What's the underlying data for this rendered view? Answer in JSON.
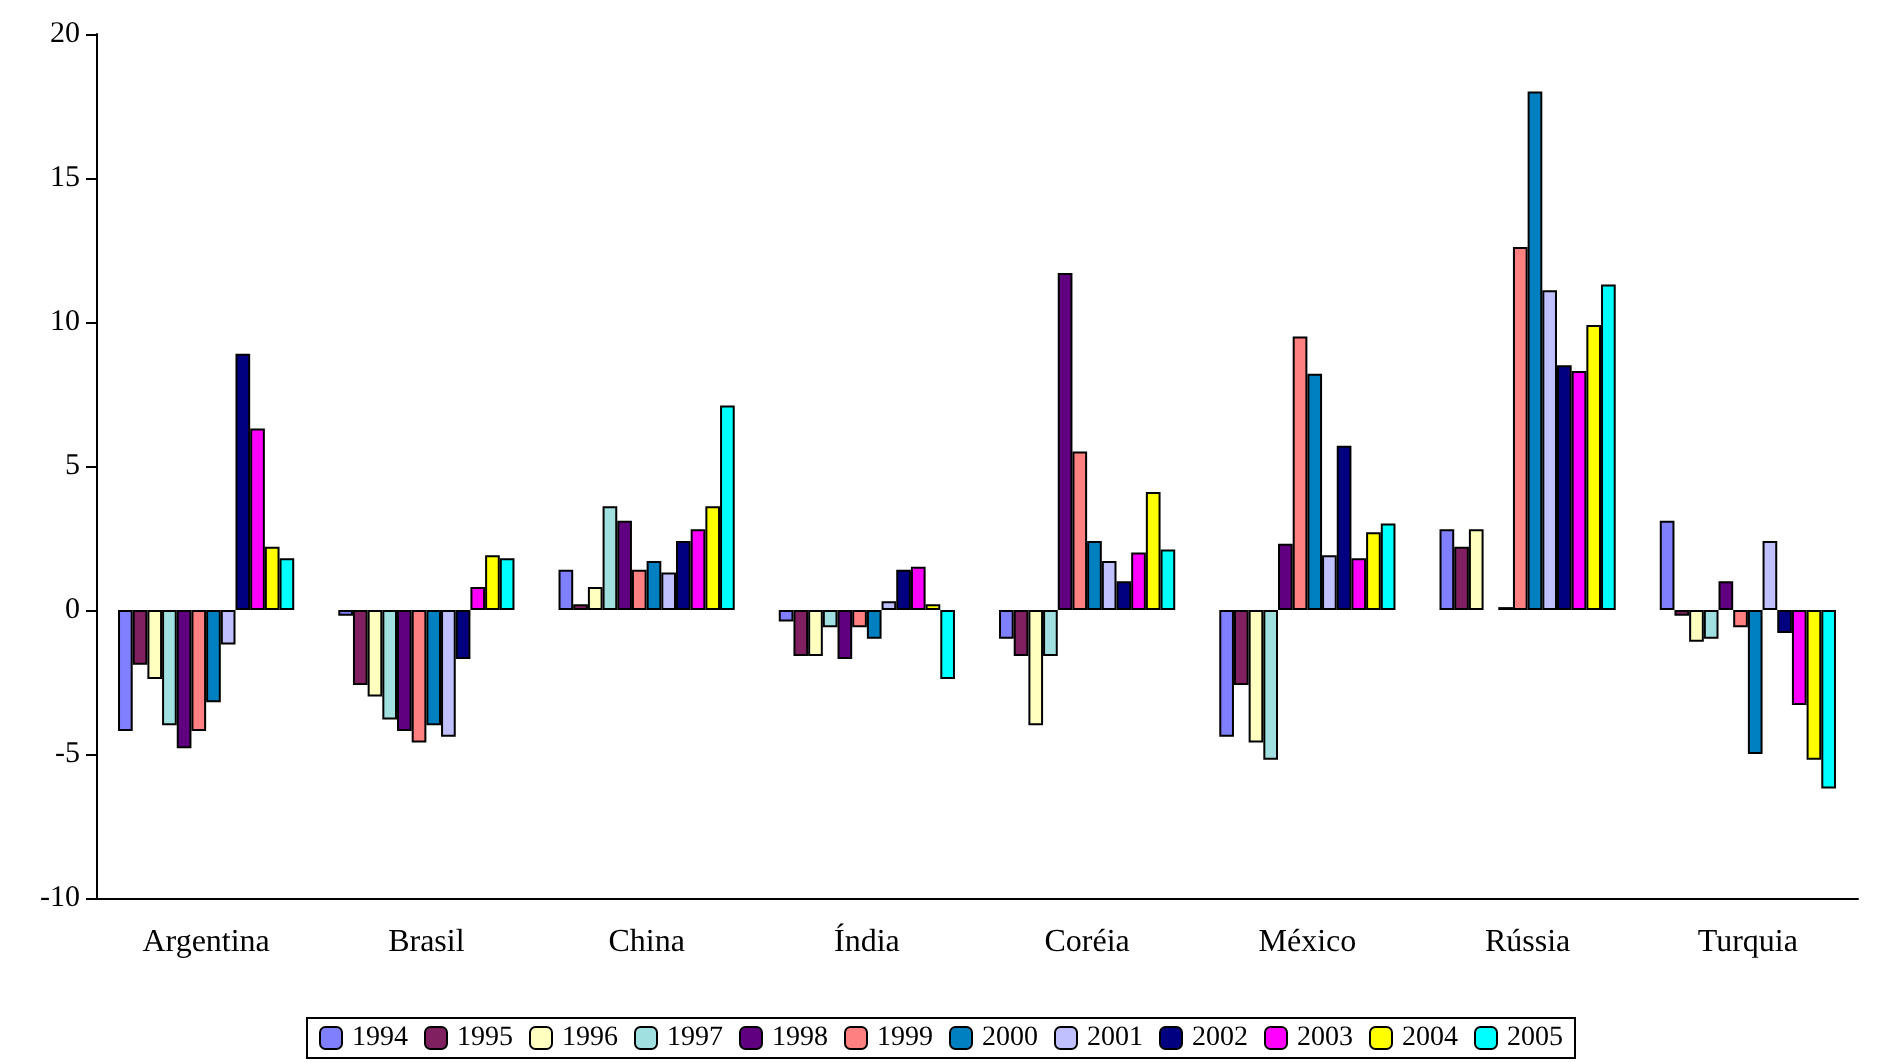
{
  "chart_data": {
    "type": "bar",
    "categories": [
      "Argentina",
      "Brasil",
      "China",
      "Índia",
      "Coréia",
      "México",
      "Rússia",
      "Turquia"
    ],
    "series": [
      {
        "name": "1994",
        "color": "#8080ff",
        "values": [
          -4.2,
          -0.2,
          1.4,
          -0.4,
          -1.0,
          -4.4,
          2.8,
          3.1
        ]
      },
      {
        "name": "1995",
        "color": "#802060",
        "values": [
          -1.9,
          -2.6,
          0.2,
          -1.6,
          -1.6,
          -2.6,
          2.2,
          -0.2
        ]
      },
      {
        "name": "1996",
        "color": "#ffffc0",
        "values": [
          -2.4,
          -3.0,
          0.8,
          -1.6,
          -4.0,
          -4.6,
          2.8,
          -1.1
        ]
      },
      {
        "name": "1997",
        "color": "#a0e0e0",
        "values": [
          -4.0,
          -3.8,
          3.6,
          -0.6,
          -1.6,
          -5.2,
          null,
          -1.0
        ]
      },
      {
        "name": "1998",
        "color": "#600080",
        "values": [
          -4.8,
          -4.2,
          3.1,
          -1.7,
          11.7,
          2.3,
          0.1,
          1.0
        ]
      },
      {
        "name": "1999",
        "color": "#ff8080",
        "values": [
          -4.2,
          -4.6,
          1.4,
          -0.6,
          5.5,
          9.5,
          12.6,
          -0.6
        ]
      },
      {
        "name": "2000",
        "color": "#0080c0",
        "values": [
          -3.2,
          -4.0,
          1.7,
          -1.0,
          2.4,
          8.2,
          18.0,
          -5.0
        ]
      },
      {
        "name": "2001",
        "color": "#c0c0ff",
        "values": [
          -1.2,
          -4.4,
          1.3,
          0.3,
          1.7,
          1.9,
          11.1,
          2.4
        ]
      },
      {
        "name": "2002",
        "color": "#000080",
        "values": [
          8.9,
          -1.7,
          2.4,
          1.4,
          1.0,
          5.7,
          8.5,
          -0.8
        ]
      },
      {
        "name": "2003",
        "color": "#ff00ff",
        "values": [
          6.3,
          0.8,
          2.8,
          1.5,
          2.0,
          1.8,
          8.3,
          -3.3
        ]
      },
      {
        "name": "2004",
        "color": "#ffff00",
        "values": [
          2.2,
          1.9,
          3.6,
          0.2,
          4.1,
          2.7,
          9.9,
          -5.2
        ]
      },
      {
        "name": "2005",
        "color": "#00ffff",
        "values": [
          1.8,
          1.8,
          7.1,
          -2.4,
          2.1,
          3.0,
          11.3,
          -6.2
        ]
      }
    ],
    "ylim": [
      -10,
      20
    ],
    "yticks": [
      -10,
      -5,
      0,
      5,
      10,
      15,
      20
    ],
    "grid": false,
    "legend": "bottom"
  }
}
